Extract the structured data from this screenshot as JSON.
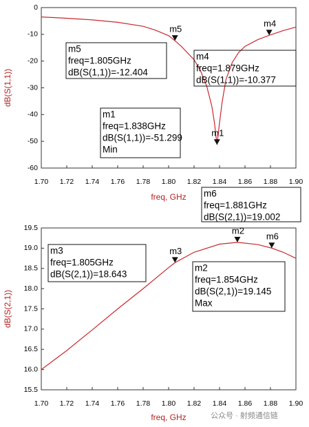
{
  "chart_data": [
    {
      "type": "line",
      "xlabel": "freq, GHz",
      "ylabel": "dB(S(1,1))",
      "color": "#c8282d",
      "x": [
        1.7,
        1.72,
        1.74,
        1.76,
        1.78,
        1.79,
        1.8,
        1.805,
        1.81,
        1.82,
        1.825,
        1.83,
        1.834,
        1.836,
        1.838,
        1.84,
        1.842,
        1.845,
        1.85,
        1.855,
        1.86,
        1.87,
        1.879,
        1.89,
        1.9
      ],
      "values": [
        -3.5,
        -4.0,
        -4.6,
        -5.5,
        -7.0,
        -8.5,
        -10.5,
        -12.404,
        -14.5,
        -19.5,
        -23.5,
        -29.5,
        -37.0,
        -43.0,
        -51.299,
        -43.0,
        -35.5,
        -27.0,
        -20.5,
        -16.8,
        -14.5,
        -12.0,
        -10.377,
        -8.6,
        -7.3
      ],
      "xlim": [
        1.7,
        1.9
      ],
      "xticks": [
        {
          "value": 1.7,
          "label": "1.70"
        },
        1.72,
        1.74,
        1.76,
        1.78,
        {
          "value": 1.8,
          "label": "1.80"
        },
        1.82,
        1.84,
        1.86,
        1.88,
        {
          "value": 1.9,
          "label": "1.90"
        }
      ],
      "ylim": [
        -60,
        0
      ],
      "yticks": [
        0,
        -10,
        -20,
        -30,
        -40,
        -50,
        -60
      ],
      "markers": [
        {
          "name": "m5",
          "x": 1.805,
          "y": -12.404,
          "lines": [
            "freq=1.805GHz",
            "dB(S(1,1))=-12.404"
          ]
        },
        {
          "name": "m4",
          "x": 1.879,
          "y": -10.377,
          "lines": [
            "freq=1.879GHz",
            "dB(S(1,1))=-10.377"
          ]
        },
        {
          "name": "m1",
          "x": 1.838,
          "y": -51.299,
          "lines": [
            "freq=1.838GHz",
            "dB(S(1,1))=-51.299",
            "Min"
          ]
        }
      ]
    },
    {
      "type": "line",
      "xlabel": "freq, GHz",
      "ylabel": "dB(S(2,1))",
      "color": "#c8282d",
      "x": [
        1.7,
        1.72,
        1.74,
        1.76,
        1.78,
        1.8,
        1.805,
        1.82,
        1.84,
        1.854,
        1.87,
        1.881,
        1.89,
        1.9
      ],
      "values": [
        16.0,
        16.47,
        16.98,
        17.5,
        18.0,
        18.52,
        18.643,
        18.9,
        19.1,
        19.145,
        19.09,
        19.002,
        18.9,
        18.75
      ],
      "xlim": [
        1.7,
        1.9
      ],
      "xticks": [
        {
          "value": 1.7,
          "label": "1.70"
        },
        1.72,
        1.74,
        1.76,
        1.78,
        {
          "value": 1.8,
          "label": "1.80"
        },
        1.82,
        1.84,
        1.86,
        1.88,
        {
          "value": 1.9,
          "label": "1.90"
        }
      ],
      "ylim": [
        15.5,
        19.5
      ],
      "yticks": [
        19.5,
        {
          "value": 19,
          "label": "19.0"
        },
        18.5,
        {
          "value": 18,
          "label": "18.0"
        },
        17.5,
        {
          "value": 17,
          "label": "17.0"
        },
        16.5,
        {
          "value": 16,
          "label": "16.0"
        },
        15.5
      ],
      "markers": [
        {
          "name": "m3",
          "x": 1.805,
          "y": 18.643,
          "lines": [
            "freq=1.805GHz",
            "dB(S(2,1))=18.643"
          ]
        },
        {
          "name": "m2",
          "x": 1.854,
          "y": 19.145,
          "lines": [
            "freq=1.854GHz",
            "dB(S(2,1))=19.145",
            "Max"
          ]
        },
        {
          "name": "m6",
          "x": 1.881,
          "y": 19.002,
          "lines": [
            "freq=1.881GHz",
            "dB(S(2,1))=19.002"
          ]
        }
      ]
    }
  ],
  "watermark": "公众号 · 射频通信链"
}
